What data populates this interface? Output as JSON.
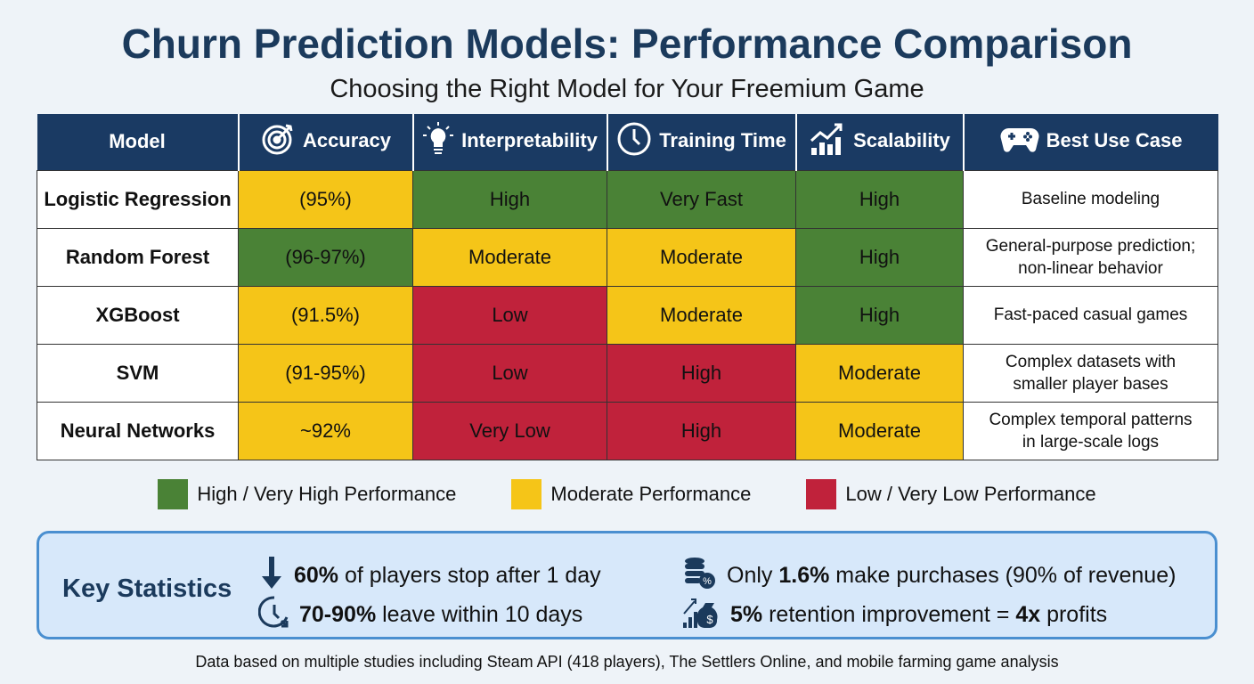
{
  "title": "Churn Prediction Models: Performance Comparison",
  "subtitle": "Choosing the Right Model for Your Freemium Game",
  "columns": [
    {
      "label": "Model",
      "icon": ""
    },
    {
      "label": "Accuracy",
      "icon": "target-icon"
    },
    {
      "label": "Interpretability",
      "icon": "lightbulb-icon"
    },
    {
      "label": "Training Time",
      "icon": "clock-icon"
    },
    {
      "label": "Scalability",
      "icon": "growth-chart-icon"
    },
    {
      "label": "Best Use Case",
      "icon": "gamepad-icon"
    }
  ],
  "rows": [
    {
      "model": "Logistic Regression",
      "cells": [
        {
          "text": "(95%)",
          "level": "moderate"
        },
        {
          "text": "High",
          "level": "high"
        },
        {
          "text": "Very Fast",
          "level": "high"
        },
        {
          "text": "High",
          "level": "high"
        }
      ],
      "use_case": [
        "Baseline modeling"
      ]
    },
    {
      "model": "Random Forest",
      "cells": [
        {
          "text": "(96-97%)",
          "level": "high"
        },
        {
          "text": "Moderate",
          "level": "moderate"
        },
        {
          "text": "Moderate",
          "level": "moderate"
        },
        {
          "text": "High",
          "level": "high"
        }
      ],
      "use_case": [
        "General-purpose prediction;",
        "non-linear behavior"
      ]
    },
    {
      "model": "XGBoost",
      "cells": [
        {
          "text": "(91.5%)",
          "level": "moderate"
        },
        {
          "text": "Low",
          "level": "low"
        },
        {
          "text": "Moderate",
          "level": "moderate"
        },
        {
          "text": "High",
          "level": "high"
        }
      ],
      "use_case": [
        "Fast-paced casual games"
      ]
    },
    {
      "model": "SVM",
      "cells": [
        {
          "text": "(91-95%)",
          "level": "moderate"
        },
        {
          "text": "Low",
          "level": "low"
        },
        {
          "text": "High",
          "level": "low"
        },
        {
          "text": "Moderate",
          "level": "moderate"
        }
      ],
      "use_case": [
        "Complex datasets with",
        "smaller player bases"
      ]
    },
    {
      "model": "Neural Networks",
      "cells": [
        {
          "text": "~92%",
          "level": "moderate"
        },
        {
          "text": "Very Low",
          "level": "low"
        },
        {
          "text": "High",
          "level": "low"
        },
        {
          "text": "Moderate",
          "level": "moderate"
        }
      ],
      "use_case": [
        "Complex temporal patterns",
        "in large-scale logs"
      ]
    }
  ],
  "legend": [
    {
      "label": "High / Very High Performance",
      "color": "#4a8236"
    },
    {
      "label": "Moderate Performance",
      "color": "#f5c518"
    },
    {
      "label": "Low / Very Low Performance",
      "color": "#c0223b"
    }
  ],
  "stats": {
    "heading": "Key Statistics",
    "items": [
      {
        "icon": "down-arrow-icon",
        "pre": "",
        "bold": "60%",
        "post": " of players stop after 1 day"
      },
      {
        "icon": "clock-arrow-icon",
        "pre": "",
        "bold": "70-90%",
        "post": " leave within 10 days"
      },
      {
        "icon": "coins-percent-icon",
        "pre": "Only ",
        "bold": "1.6%",
        "post": " make purchases (90% of revenue)"
      },
      {
        "icon": "money-bag-growth-icon",
        "pre": "",
        "bold": "5%",
        "post": " retention improvement = ",
        "bold2": "4x",
        "post2": " profits"
      }
    ]
  },
  "footer": "Data based on multiple studies including Steam API (418 players), The Settlers Online, and mobile farming game analysis"
}
